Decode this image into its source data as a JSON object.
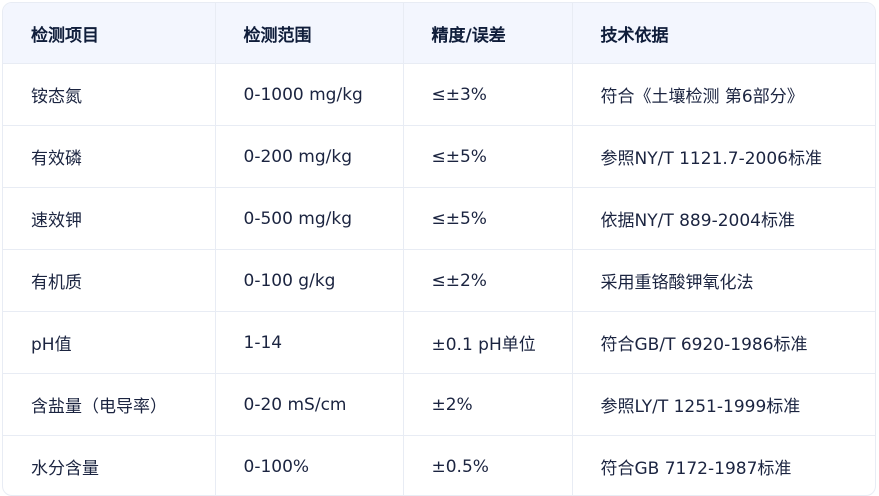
{
  "headers": [
    "检测项目",
    "检测范围",
    "精度/误差",
    "技术依据"
  ],
  "rows": [
    [
      "铵态氮",
      "0-1000 mg/kg",
      "≤±3%",
      "符合《土壤检测 第6部分》"
    ],
    [
      "有效磷",
      "0-200 mg/kg",
      "≤±5%",
      "参照NY/T 1121.7-2006标准"
    ],
    [
      "速效钾",
      "0-500 mg/kg",
      "≤±5%",
      "依据NY/T 889-2004标准"
    ],
    [
      "有机质",
      "0-100 g/kg",
      "≤±2%",
      "采用重铬酸钾氧化法"
    ],
    [
      "pH值",
      "1-14",
      "±0.1 pH单位",
      "符合GB/T 6920-1986标准"
    ],
    [
      "含盐量（电导率）",
      "0-20 mS/cm",
      "±2%",
      "参照LY/T 1251-1999标准"
    ],
    [
      "水分含量",
      "0-100%",
      "±0.5%",
      "符合GB 7172-1987标准"
    ]
  ]
}
